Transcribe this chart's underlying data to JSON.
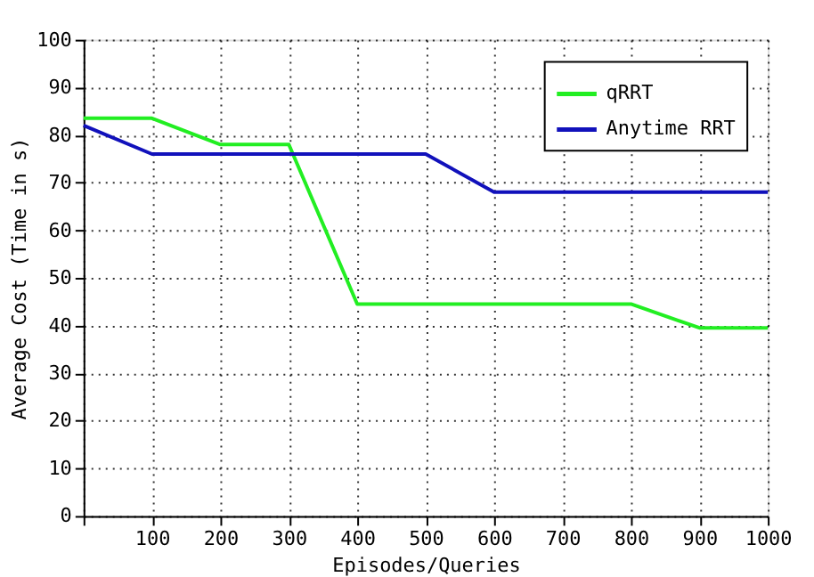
{
  "chart_data": {
    "type": "line",
    "xlabel": "Episodes/Queries",
    "ylabel": "Average Cost (Time in s)",
    "x": [
      0,
      100,
      200,
      300,
      400,
      500,
      600,
      700,
      800,
      900,
      1000
    ],
    "series": [
      {
        "name": "qRRT",
        "color": "#22ee22",
        "values": [
          83.5,
          83.5,
          78,
          78,
          44.5,
          44.5,
          44.5,
          44.5,
          44.5,
          39.5,
          39.5
        ]
      },
      {
        "name": "Anytime RRT",
        "color": "#1111bb",
        "values": [
          82,
          76,
          76,
          76,
          76,
          76,
          68,
          68,
          68,
          68,
          68
        ]
      }
    ],
    "xlim": [
      0,
      1000
    ],
    "xticks": [
      {
        "value": 0,
        "label": null
      },
      100,
      200,
      300,
      400,
      500,
      600,
      700,
      800,
      900,
      1000
    ],
    "ylim": [
      0,
      100
    ],
    "yticks": [
      0,
      10,
      20,
      30,
      40,
      50,
      60,
      70,
      80,
      90,
      100
    ],
    "grid": true,
    "legend": "top right",
    "marker": "none",
    "line_style": "solid"
  }
}
